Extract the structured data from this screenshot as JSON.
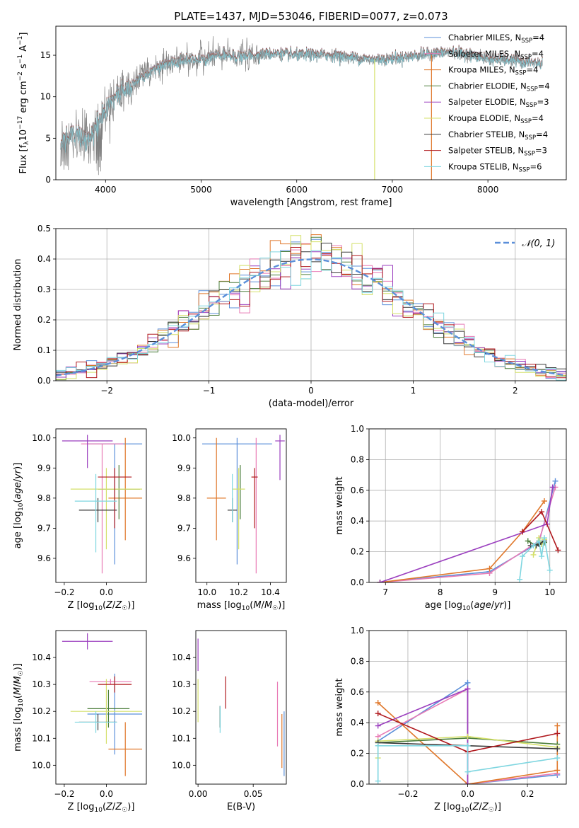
{
  "figure": {
    "title": "PLATE=1437, MJD=53046, FIBERID=0077, z=0.073"
  },
  "model_styles": [
    {
      "name": "Chabrier MILES",
      "color": "#5b8fd9"
    },
    {
      "name": "Salpeter MILES",
      "color": "#e87ab5"
    },
    {
      "name": "Kroupa MILES",
      "color": "#e0782b"
    },
    {
      "name": "Chabrier ELODIE",
      "color": "#4a7d3a"
    },
    {
      "name": "Salpeter ELODIE",
      "color": "#9b3fbf"
    },
    {
      "name": "Kroupa ELODIE",
      "color": "#d4e06a"
    },
    {
      "name": "Chabrier STELIB",
      "color": "#3a3a3a"
    },
    {
      "name": "Salpeter STELIB",
      "color": "#b0191e"
    },
    {
      "name": "Kroupa STELIB",
      "color": "#7fd6e0"
    }
  ],
  "chart_data": [
    {
      "id": "spectrum",
      "type": "line",
      "xlabel": "wavelength [Angstrom, rest frame]",
      "ylabel": "Flux [f_λ10^-17 erg cm^-2 s^-1 A^-1]",
      "xlim": [
        3480,
        8820
      ],
      "ylim": [
        0,
        18.5
      ],
      "xticks": [
        4000,
        5000,
        6000,
        7000,
        8000
      ],
      "yticks": [
        0,
        5,
        10,
        15
      ],
      "legend": [
        {
          "label": "Chabrier MILES, N_SSP=4",
          "color": "#5b8fd9"
        },
        {
          "label": "Salpeter MILES, N_SSP=4",
          "color": "#e87ab5"
        },
        {
          "label": "Kroupa MILES, N_SSP=4",
          "color": "#e0782b"
        },
        {
          "label": "Chabrier ELODIE, N_SSP=4",
          "color": "#4a7d3a"
        },
        {
          "label": "Salpeter ELODIE, N_SSP=3",
          "color": "#9b3fbf"
        },
        {
          "label": "Kroupa ELODIE, N_SSP=4",
          "color": "#d4e06a"
        },
        {
          "label": "Chabrier STELIB, N_SSP=4",
          "color": "#3a3a3a"
        },
        {
          "label": "Salpeter STELIB, N_SSP=3",
          "color": "#b0191e"
        },
        {
          "label": "Kroupa STELIB, N_SSP=6",
          "color": "#7fd6e0"
        }
      ],
      "continuum_wavelength": [
        3550,
        3650,
        3750,
        3850,
        3950,
        4050,
        4200,
        4400,
        4600,
        4800,
        5000,
        5200,
        5400,
        5600,
        5800,
        6000,
        6200,
        6400,
        6600,
        6800,
        7000,
        7200,
        7400,
        7600,
        7800,
        8000,
        8200,
        8400,
        8560
      ],
      "continuum_flux": [
        4.5,
        5.5,
        5.0,
        4.8,
        7.5,
        9.5,
        11.0,
        12.5,
        13.8,
        14.3,
        14.6,
        15.0,
        14.8,
        15.1,
        15.2,
        15.0,
        15.1,
        15.0,
        14.7,
        14.5,
        14.6,
        14.9,
        15.2,
        15.4,
        15.1,
        14.6,
        14.4,
        14.2,
        14.0
      ]
    },
    {
      "id": "residual-histogram",
      "type": "histogram",
      "xlabel": "(data-model)/error",
      "ylabel": "Normed distribution",
      "xlim": [
        -2.5,
        2.5
      ],
      "ylim": [
        0,
        0.5
      ],
      "xticks": [
        -2,
        -1,
        0,
        1,
        2
      ],
      "yticks": [
        0.0,
        0.1,
        0.2,
        0.3,
        0.4,
        0.5
      ],
      "bin_width": 0.1,
      "reference": {
        "label": "𝒩(0, 1)",
        "color": "#5b8fd9",
        "mu": 0,
        "sigma": 1
      },
      "legend_position": "top-right"
    },
    {
      "id": "age-vs-Z",
      "type": "errorbar",
      "xlabel": "Z [log10(Z/Z☉)]",
      "ylabel": "age [log10(age/yr)]",
      "xlim": [
        -0.24,
        0.19
      ],
      "ylim": [
        9.52,
        10.03
      ],
      "xticks": [
        -0.2,
        0.0
      ],
      "yticks": [
        9.6,
        9.7,
        9.8,
        9.9,
        10.0
      ],
      "points": [
        {
          "x": 0.04,
          "xerr": 0.13,
          "y": 9.98,
          "yerr_lo": 0.4,
          "yerr_hi": 0.0,
          "color": "#5b8fd9"
        },
        {
          "x": -0.02,
          "xerr": 0.1,
          "y": 9.98,
          "yerr_lo": 0.43,
          "yerr_hi": 0.0,
          "color": "#e87ab5"
        },
        {
          "x": 0.09,
          "xerr": 0.08,
          "y": 9.8,
          "yerr_lo": 0.14,
          "yerr_hi": 0.2,
          "color": "#e0782b"
        },
        {
          "x": 0.06,
          "xerr": 0.1,
          "y": 9.83,
          "yerr_lo": 0.1,
          "yerr_hi": 0.08,
          "color": "#4a7d3a"
        },
        {
          "x": -0.09,
          "xerr": 0.12,
          "y": 9.99,
          "yerr_lo": 0.09,
          "yerr_hi": 0.02,
          "color": "#9b3fbf"
        },
        {
          "x": 0.0,
          "xerr": 0.17,
          "y": 9.83,
          "yerr_lo": 0.2,
          "yerr_hi": 0.07,
          "color": "#d4e06a"
        },
        {
          "x": -0.04,
          "xerr": 0.09,
          "y": 9.76,
          "yerr_lo": 0.04,
          "yerr_hi": 0.04,
          "color": "#3a3a3a"
        },
        {
          "x": 0.04,
          "xerr": 0.08,
          "y": 9.87,
          "yerr_lo": 0.17,
          "yerr_hi": 0.03,
          "color": "#b0191e"
        },
        {
          "x": -0.05,
          "xerr": 0.1,
          "y": 9.79,
          "yerr_lo": 0.17,
          "yerr_hi": 0.09,
          "color": "#7fd6e0"
        }
      ]
    },
    {
      "id": "age-vs-mass",
      "type": "errorbar",
      "xlabel": "mass [log10(M/M☉)]",
      "ylabel": "",
      "xlim": [
        9.93,
        10.5
      ],
      "ylim": [
        9.52,
        10.03
      ],
      "xticks": [
        10.0,
        10.2,
        10.4
      ],
      "yticks": [
        9.6,
        9.7,
        9.8,
        9.9,
        10.0
      ],
      "points": [
        {
          "x": 10.19,
          "xerr": 0.22,
          "y": 9.98,
          "yerr_lo": 0.4,
          "yerr_hi": 0.02,
          "color": "#5b8fd9"
        },
        {
          "x": 10.31,
          "xerr": 0.0,
          "y": 9.98,
          "yerr_lo": 0.43,
          "yerr_hi": 0.02,
          "color": "#e87ab5"
        },
        {
          "x": 10.06,
          "xerr": 0.06,
          "y": 9.8,
          "yerr_lo": 0.14,
          "yerr_hi": 0.2,
          "color": "#e0782b"
        },
        {
          "x": 10.21,
          "xerr": 0.0,
          "y": 9.83,
          "yerr_lo": 0.1,
          "yerr_hi": 0.08,
          "color": "#4a7d3a"
        },
        {
          "x": 10.46,
          "xerr": 0.03,
          "y": 9.99,
          "yerr_lo": 0.13,
          "yerr_hi": 0.02,
          "color": "#9b3fbf"
        },
        {
          "x": 10.2,
          "xerr": 0.04,
          "y": 9.83,
          "yerr_lo": 0.2,
          "yerr_hi": 0.07,
          "color": "#d4e06a"
        },
        {
          "x": 10.16,
          "xerr": 0.03,
          "y": 9.76,
          "yerr_lo": 0.04,
          "yerr_hi": 0.04,
          "color": "#3a3a3a"
        },
        {
          "x": 10.3,
          "xerr": 0.02,
          "y": 9.87,
          "yerr_lo": 0.17,
          "yerr_hi": 0.03,
          "color": "#b0191e"
        },
        {
          "x": 10.16,
          "xerr": 0.0,
          "y": 9.79,
          "yerr_lo": 0.07,
          "yerr_hi": 0.09,
          "color": "#7fd6e0"
        }
      ]
    },
    {
      "id": "mass-weight-vs-age",
      "type": "line",
      "xlabel": "age [log10(age/yr)]",
      "ylabel": "mass weight",
      "xlim": [
        6.7,
        10.3
      ],
      "ylim": [
        0,
        1.0
      ],
      "xticks": [
        7,
        8,
        9,
        10
      ],
      "yticks": [
        0.0,
        0.2,
        0.4,
        0.6,
        0.8,
        1.0
      ],
      "series": [
        {
          "color": "#5b8fd9",
          "x": [
            6.9,
            8.9,
            9.8,
            10.1
          ],
          "y": [
            0.0,
            0.07,
            0.26,
            0.66
          ]
        },
        {
          "color": "#e87ab5",
          "x": [
            6.9,
            8.9,
            9.8,
            10.1
          ],
          "y": [
            0.0,
            0.06,
            0.27,
            0.62
          ]
        },
        {
          "color": "#e0782b",
          "x": [
            6.9,
            8.9,
            9.5,
            9.9
          ],
          "y": [
            0.0,
            0.09,
            0.33,
            0.53
          ]
        },
        {
          "color": "#4a7d3a",
          "x": [
            9.6,
            9.75,
            9.85,
            9.9
          ],
          "y": [
            0.27,
            0.24,
            0.25,
            0.26
          ]
        },
        {
          "color": "#9b3fbf",
          "x": [
            6.9,
            9.95,
            10.05
          ],
          "y": [
            0.0,
            0.38,
            0.62
          ]
        },
        {
          "color": "#d4e06a",
          "x": [
            9.7,
            9.8,
            9.85,
            9.9
          ],
          "y": [
            0.18,
            0.29,
            0.25,
            0.28
          ]
        },
        {
          "color": "#3a3a3a",
          "x": [
            9.65,
            9.75,
            9.8,
            9.9
          ],
          "y": [
            0.24,
            0.24,
            0.25,
            0.27
          ]
        },
        {
          "color": "#b0191e",
          "x": [
            9.5,
            9.85,
            10.15
          ],
          "y": [
            0.33,
            0.46,
            0.21
          ]
        },
        {
          "color": "#7fd6e0",
          "x": [
            9.45,
            9.5,
            9.7,
            9.8,
            9.85,
            9.9,
            10.0
          ],
          "y": [
            0.02,
            0.17,
            0.24,
            0.27,
            0.17,
            0.29,
            0.08
          ]
        }
      ]
    },
    {
      "id": "mass-vs-Z",
      "type": "errorbar",
      "xlabel": "Z [log10(Z/Z☉)]",
      "ylabel": "mass [log10(M/M☉)]",
      "xlim": [
        -0.24,
        0.19
      ],
      "ylim": [
        9.93,
        10.5
      ],
      "xticks": [
        -0.2,
        0.0
      ],
      "yticks": [
        10.0,
        10.1,
        10.2,
        10.3,
        10.4
      ],
      "points": [
        {
          "x": 0.04,
          "xerr": 0.13,
          "y": 10.19,
          "yerr": 0.15,
          "color": "#5b8fd9"
        },
        {
          "x": 0.02,
          "xerr": 0.1,
          "y": 10.31,
          "yerr": 0.01,
          "color": "#e87ab5"
        },
        {
          "x": 0.09,
          "xerr": 0.08,
          "y": 10.06,
          "yerr": 0.1,
          "color": "#e0782b"
        },
        {
          "x": 0.01,
          "xerr": 0.1,
          "y": 10.21,
          "yerr": 0.07,
          "color": "#4a7d3a"
        },
        {
          "x": -0.09,
          "xerr": 0.12,
          "y": 10.46,
          "yerr": 0.03,
          "color": "#9b3fbf"
        },
        {
          "x": 0.0,
          "xerr": 0.17,
          "y": 10.2,
          "yerr": 0.12,
          "color": "#d4e06a"
        },
        {
          "x": -0.04,
          "xerr": 0.09,
          "y": 10.16,
          "yerr": 0.03,
          "color": "#3a3a3a"
        },
        {
          "x": 0.04,
          "xerr": 0.08,
          "y": 10.3,
          "yerr": 0.03,
          "color": "#b0191e"
        },
        {
          "x": -0.05,
          "xerr": 0.1,
          "y": 10.16,
          "yerr": 0.04,
          "color": "#7fd6e0"
        }
      ]
    },
    {
      "id": "mass-vs-EBV",
      "type": "errorbar",
      "xlabel": "E(B-V)",
      "ylabel": "",
      "xlim": [
        -0.002,
        0.08
      ],
      "ylim": [
        9.93,
        10.5
      ],
      "xticks": [
        0.0,
        0.05
      ],
      "yticks": [
        10.0,
        10.1,
        10.2,
        10.3,
        10.4
      ],
      "points": [
        {
          "x": 0.078,
          "y": 10.08,
          "yerr": 0.12,
          "color": "#5b8fd9"
        },
        {
          "x": 0.072,
          "y": 10.19,
          "yerr": 0.12,
          "color": "#e87ab5"
        },
        {
          "x": 0.076,
          "y": 10.09,
          "yerr": 0.1,
          "color": "#e0782b"
        },
        {
          "x": 0.02,
          "y": 10.18,
          "yerr": 0.04,
          "color": "#4a7d3a"
        },
        {
          "x": 0.0,
          "y": 10.41,
          "yerr": 0.06,
          "color": "#9b3fbf"
        },
        {
          "x": 0.0,
          "y": 10.24,
          "yerr": 0.08,
          "color": "#d4e06a"
        },
        {
          "x": 0.02,
          "y": 10.18,
          "yerr": 0.04,
          "color": "#3a3a3a"
        },
        {
          "x": 0.025,
          "y": 10.27,
          "yerr": 0.06,
          "color": "#b0191e"
        },
        {
          "x": 0.02,
          "y": 10.17,
          "yerr": 0.05,
          "color": "#7fd6e0"
        }
      ]
    },
    {
      "id": "mass-weight-vs-Z",
      "type": "line",
      "xlabel": "Z [log10(Z/Z☉)]",
      "ylabel": "mass weight",
      "xlim": [
        -0.33,
        0.33
      ],
      "ylim": [
        0,
        1.0
      ],
      "xticks": [
        -0.2,
        0.0,
        0.2
      ],
      "yticks": [
        0.0,
        0.2,
        0.4,
        0.6,
        0.8,
        1.0
      ],
      "series": [
        {
          "color": "#5b8fd9",
          "x": [
            -0.3,
            0.0,
            0.0,
            0.3
          ],
          "y": [
            0.28,
            0.66,
            0.0,
            0.06
          ]
        },
        {
          "color": "#e87ab5",
          "x": [
            -0.3,
            0.0,
            0.0,
            0.3
          ],
          "y": [
            0.31,
            0.62,
            0.0,
            0.07
          ]
        },
        {
          "color": "#e0782b",
          "x": [
            -0.3,
            0.0,
            0.3,
            0.3
          ],
          "y": [
            0.53,
            0.0,
            0.09,
            0.38
          ]
        },
        {
          "color": "#4a7d3a",
          "x": [
            -0.3,
            0.0,
            0.3
          ],
          "y": [
            0.27,
            0.3,
            0.26
          ]
        },
        {
          "color": "#9b3fbf",
          "x": [
            -0.3,
            0.0,
            0.0
          ],
          "y": [
            0.38,
            0.62,
            0.0
          ]
        },
        {
          "color": "#d4e06a",
          "x": [
            -0.3,
            -0.3,
            0.0,
            0.3
          ],
          "y": [
            0.17,
            0.28,
            0.31,
            0.24
          ]
        },
        {
          "color": "#3a3a3a",
          "x": [
            -0.3,
            0.3
          ],
          "y": [
            0.27,
            0.23
          ]
        },
        {
          "color": "#b0191e",
          "x": [
            -0.3,
            0.0,
            0.3
          ],
          "y": [
            0.46,
            0.21,
            0.33
          ]
        },
        {
          "color": "#7fd6e0",
          "x": [
            -0.3,
            -0.3,
            0.0,
            0.0,
            0.3
          ],
          "y": [
            0.02,
            0.25,
            0.25,
            0.08,
            0.17
          ]
        }
      ]
    }
  ]
}
